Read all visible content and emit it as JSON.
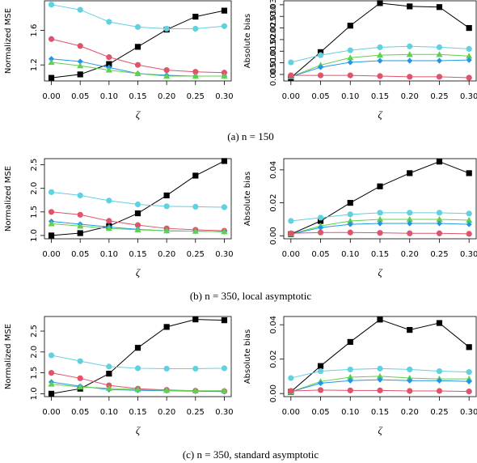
{
  "chart_data": [
    {
      "type": "line",
      "xlabel": "ζ",
      "ylabel": "Normalized MSE",
      "x": [
        0,
        0.05,
        0.1,
        0.15,
        0.2,
        0.25,
        0.3
      ],
      "xlim": [
        -0.012,
        0.312
      ],
      "xticks": [
        {
          "value": 0,
          "label": "0.00"
        },
        0.05,
        {
          "value": 0.1,
          "label": "0.10"
        },
        0.15,
        {
          "value": 0.2,
          "label": "0.20"
        },
        0.25,
        {
          "value": 0.3,
          "label": "0.30"
        }
      ],
      "ylim": [
        1.014,
        1.944
      ],
      "yticks": [
        1.2,
        1.6
      ],
      "series": [
        {
          "color": "#000000",
          "marker": "square",
          "values": [
            1.05,
            1.09,
            1.21,
            1.41,
            1.61,
            1.76,
            1.83
          ]
        },
        {
          "color": "#61d0df",
          "marker": "circle",
          "values": [
            1.9,
            1.84,
            1.7,
            1.64,
            1.62,
            1.62,
            1.65
          ]
        },
        {
          "color": "#df536b",
          "marker": "circle",
          "values": [
            1.5,
            1.42,
            1.29,
            1.2,
            1.14,
            1.12,
            1.11
          ]
        },
        {
          "color": "#2297e6",
          "marker": "diamond",
          "values": [
            1.27,
            1.24,
            1.17,
            1.1,
            1.08,
            1.07,
            1.07
          ]
        },
        {
          "color": "#61d04f",
          "marker": "triangle",
          "values": [
            1.23,
            1.19,
            1.14,
            1.1,
            1.07,
            1.07,
            1.07
          ]
        }
      ]
    },
    {
      "type": "line",
      "xlabel": "ζ",
      "ylabel": "Absolute bias",
      "x": [
        0,
        0.05,
        0.1,
        0.15,
        0.2,
        0.25,
        0.3
      ],
      "xlim": [
        -0.012,
        0.312
      ],
      "xticks": [
        {
          "value": 0,
          "label": "0.00"
        },
        0.05,
        {
          "value": 0.1,
          "label": "0.10"
        },
        0.15,
        {
          "value": 0.2,
          "label": "0.20"
        },
        0.25,
        {
          "value": 0.3,
          "label": "0.30"
        }
      ],
      "ylim": [
        0.0022,
        0.0367
      ],
      "yticks": [
        0.005,
        {
          "value": 0.01,
          "label": "0.010"
        },
        0.015,
        {
          "value": 0.02,
          "label": "0.020"
        },
        0.025,
        {
          "value": 0.03,
          "label": "0.030"
        },
        0.035
      ],
      "series": [
        {
          "color": "#000000",
          "marker": "square",
          "values": [
            0.0036,
            0.0146,
            0.026,
            0.0357,
            0.0343,
            0.034,
            0.025
          ]
        },
        {
          "color": "#61d0df",
          "marker": "circle",
          "values": [
            0.0102,
            0.0133,
            0.0154,
            0.0167,
            0.0171,
            0.0167,
            0.016
          ]
        },
        {
          "color": "#61d04f",
          "marker": "triangle",
          "values": [
            0.004,
            0.009,
            0.0122,
            0.0133,
            0.0136,
            0.0136,
            0.0129
          ]
        },
        {
          "color": "#2297e6",
          "marker": "diamond",
          "values": [
            0.004,
            0.0081,
            0.0102,
            0.0109,
            0.0109,
            0.0109,
            0.0112
          ]
        },
        {
          "color": "#df536b",
          "marker": "circle",
          "values": [
            0.0046,
            0.0046,
            0.0046,
            0.0043,
            0.004,
            0.004,
            0.0036
          ]
        }
      ]
    },
    {
      "type": "line",
      "xlabel": "ζ",
      "ylabel": "Normalized MSE",
      "x": [
        0,
        0.05,
        0.1,
        0.15,
        0.2,
        0.25,
        0.3
      ],
      "xlim": [
        -0.012,
        0.312
      ],
      "xticks": [
        {
          "value": 0,
          "label": "0.00"
        },
        0.05,
        {
          "value": 0.1,
          "label": "0.10"
        },
        0.15,
        {
          "value": 0.2,
          "label": "0.20"
        },
        0.25,
        {
          "value": 0.3,
          "label": "0.30"
        }
      ],
      "ylim": [
        0.93,
        2.63
      ],
      "yticks": [
        {
          "value": 1,
          "label": "1.0"
        },
        1.5,
        {
          "value": 2,
          "label": "2.0"
        },
        2.5
      ],
      "series": [
        {
          "color": "#000000",
          "marker": "square",
          "values": [
            1.0,
            1.05,
            1.2,
            1.47,
            1.85,
            2.27,
            2.58
          ]
        },
        {
          "color": "#61d0df",
          "marker": "circle",
          "values": [
            1.92,
            1.85,
            1.74,
            1.66,
            1.62,
            1.61,
            1.6
          ]
        },
        {
          "color": "#df536b",
          "marker": "circle",
          "values": [
            1.5,
            1.44,
            1.31,
            1.22,
            1.15,
            1.12,
            1.1
          ]
        },
        {
          "color": "#2297e6",
          "marker": "diamond",
          "values": [
            1.3,
            1.24,
            1.18,
            1.13,
            1.1,
            1.09,
            1.08
          ]
        },
        {
          "color": "#61d04f",
          "marker": "triangle",
          "values": [
            1.25,
            1.2,
            1.15,
            1.12,
            1.1,
            1.09,
            1.08
          ]
        }
      ]
    },
    {
      "type": "line",
      "xlabel": "ζ",
      "ylabel": "Absolute bias",
      "x": [
        0,
        0.05,
        0.1,
        0.15,
        0.2,
        0.25,
        0.3
      ],
      "xlim": [
        -0.012,
        0.312
      ],
      "xticks": [
        {
          "value": 0,
          "label": "0.00"
        },
        0.05,
        {
          "value": 0.1,
          "label": "0.10"
        },
        0.15,
        {
          "value": 0.2,
          "label": "0.20"
        },
        0.25,
        {
          "value": 0.3,
          "label": "0.30"
        }
      ],
      "ylim": [
        -0.0018,
        0.0468
      ],
      "yticks": [
        {
          "value": 0,
          "label": "0.00"
        },
        0.02,
        0.04
      ],
      "series": [
        {
          "color": "#000000",
          "marker": "square",
          "values": [
            0.001,
            0.009,
            0.02,
            0.03,
            0.038,
            0.045,
            0.038
          ]
        },
        {
          "color": "#61d0df",
          "marker": "circle",
          "values": [
            0.009,
            0.011,
            0.013,
            0.014,
            0.014,
            0.014,
            0.0135
          ]
        },
        {
          "color": "#61d04f",
          "marker": "triangle",
          "values": [
            0.001,
            0.006,
            0.009,
            0.01,
            0.01,
            0.01,
            0.0095
          ]
        },
        {
          "color": "#2297e6",
          "marker": "diamond",
          "values": [
            0.001,
            0.005,
            0.007,
            0.0075,
            0.0075,
            0.0075,
            0.007
          ]
        },
        {
          "color": "#df536b",
          "marker": "circle",
          "values": [
            0.0015,
            0.002,
            0.002,
            0.0018,
            0.0015,
            0.0015,
            0.0012
          ]
        }
      ]
    },
    {
      "type": "line",
      "xlabel": "ζ",
      "ylabel": "Normalized MSE",
      "x": [
        0,
        0.05,
        0.1,
        0.15,
        0.2,
        0.25,
        0.3
      ],
      "xlim": [
        -0.012,
        0.312
      ],
      "xticks": [
        {
          "value": 0,
          "label": "0.00"
        },
        0.05,
        {
          "value": 0.1,
          "label": "0.10"
        },
        0.15,
        {
          "value": 0.2,
          "label": "0.20"
        },
        0.25,
        {
          "value": 0.3,
          "label": "0.30"
        }
      ],
      "ylim": [
        0.93,
        2.85
      ],
      "yticks": [
        {
          "value": 1,
          "label": "1.0"
        },
        1.5,
        {
          "value": 2,
          "label": "2.0"
        },
        2.5
      ],
      "series": [
        {
          "color": "#000000",
          "marker": "square",
          "values": [
            1.0,
            1.12,
            1.48,
            2.1,
            2.6,
            2.78,
            2.76
          ]
        },
        {
          "color": "#61d0df",
          "marker": "circle",
          "values": [
            1.92,
            1.78,
            1.65,
            1.61,
            1.6,
            1.6,
            1.61
          ]
        },
        {
          "color": "#df536b",
          "marker": "circle",
          "values": [
            1.5,
            1.37,
            1.2,
            1.12,
            1.09,
            1.07,
            1.06
          ]
        },
        {
          "color": "#2297e6",
          "marker": "diamond",
          "values": [
            1.28,
            1.18,
            1.1,
            1.08,
            1.07,
            1.06,
            1.05
          ]
        },
        {
          "color": "#61d04f",
          "marker": "triangle",
          "values": [
            1.23,
            1.16,
            1.13,
            1.1,
            1.08,
            1.07,
            1.07
          ]
        }
      ]
    },
    {
      "type": "line",
      "xlabel": "ζ",
      "ylabel": "Absolute bias",
      "x": [
        0,
        0.05,
        0.1,
        0.15,
        0.2,
        0.25,
        0.3
      ],
      "xlim": [
        -0.012,
        0.312
      ],
      "xticks": [
        {
          "value": 0,
          "label": "0.00"
        },
        0.05,
        {
          "value": 0.1,
          "label": "0.10"
        },
        0.15,
        {
          "value": 0.2,
          "label": "0.20"
        },
        0.25,
        {
          "value": 0.3,
          "label": "0.30"
        }
      ],
      "ylim": [
        -0.0018,
        0.0448
      ],
      "yticks": [
        {
          "value": 0,
          "label": "0.00"
        },
        0.02,
        0.04
      ],
      "series": [
        {
          "color": "#000000",
          "marker": "square",
          "values": [
            0.001,
            0.016,
            0.03,
            0.043,
            0.037,
            0.041,
            0.027
          ]
        },
        {
          "color": "#61d0df",
          "marker": "circle",
          "values": [
            0.009,
            0.013,
            0.014,
            0.0145,
            0.014,
            0.013,
            0.0125
          ]
        },
        {
          "color": "#61d04f",
          "marker": "triangle",
          "values": [
            0.001,
            0.007,
            0.0095,
            0.01,
            0.009,
            0.0085,
            0.0085
          ]
        },
        {
          "color": "#2297e6",
          "marker": "diamond",
          "values": [
            0.001,
            0.006,
            0.0075,
            0.008,
            0.0075,
            0.0075,
            0.007
          ]
        },
        {
          "color": "#df536b",
          "marker": "circle",
          "values": [
            0.0015,
            0.002,
            0.0018,
            0.0018,
            0.0015,
            0.0015,
            0.0012
          ]
        }
      ]
    }
  ],
  "captions": [
    "(a) n = 150",
    "(b) n = 350, local asymptotic",
    "(c) n = 350, standard asymptotic"
  ]
}
